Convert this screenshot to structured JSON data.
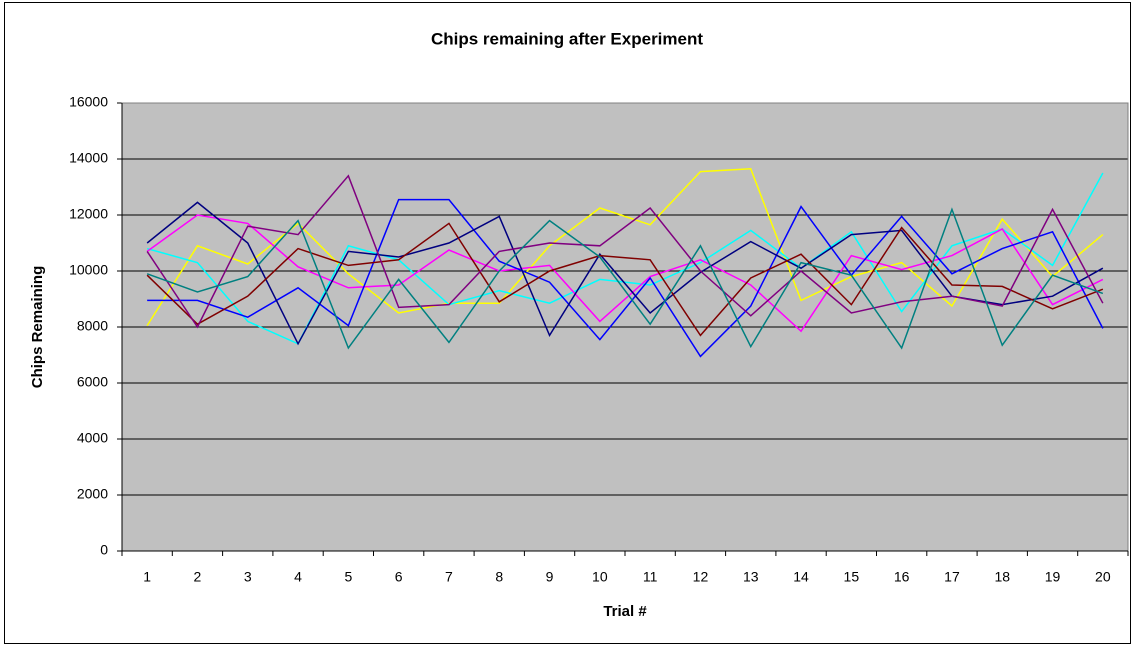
{
  "chart_data": {
    "type": "line",
    "title": "Chips remaining after Experiment",
    "x_label": "Trial #",
    "y_label": "Chips Remaining",
    "categories": [
      1,
      2,
      3,
      4,
      5,
      6,
      7,
      8,
      9,
      10,
      11,
      12,
      13,
      14,
      15,
      16,
      17,
      18,
      19,
      20
    ],
    "ylim": [
      0,
      16000
    ],
    "yticks": [
      0,
      2000,
      4000,
      6000,
      8000,
      10000,
      12000,
      14000,
      16000
    ],
    "grid": true,
    "series": [
      {
        "color": "#ffff00",
        "values": [
          8050,
          10900,
          10250,
          11700,
          9900,
          8500,
          8850,
          8850,
          10900,
          12250,
          11650,
          13550,
          13650,
          8950,
          9800,
          10300,
          8750,
          11850,
          9800,
          11300
        ]
      },
      {
        "color": "#00ffff",
        "values": [
          10800,
          10300,
          8200,
          7400,
          10900,
          10400,
          8800,
          9300,
          8850,
          9700,
          9500,
          10300,
          11450,
          10100,
          11400,
          8550,
          10900,
          11500,
          10200,
          13500
        ]
      },
      {
        "color": "#ff00ff",
        "values": [
          10700,
          12000,
          11700,
          10150,
          9400,
          9500,
          10750,
          10000,
          10200,
          8200,
          9800,
          10400,
          9500,
          7850,
          10550,
          10050,
          10550,
          11500,
          8800,
          9700
        ]
      },
      {
        "color": "#0000ff",
        "values": [
          8950,
          8950,
          8350,
          9400,
          8050,
          12550,
          12550,
          10350,
          9600,
          7550,
          9750,
          6950,
          8750,
          12300,
          9850,
          11950,
          9900,
          10800,
          11400,
          7950
        ]
      },
      {
        "color": "#000080",
        "values": [
          11000,
          12450,
          11000,
          7400,
          10700,
          10500,
          11000,
          11950,
          7700,
          10600,
          8500,
          9950,
          11050,
          10100,
          11300,
          11450,
          9100,
          8800,
          9100,
          10100
        ]
      },
      {
        "color": "#800000",
        "values": [
          9850,
          8100,
          9100,
          10800,
          10200,
          10400,
          11700,
          8900,
          10000,
          10550,
          10400,
          7700,
          9750,
          10600,
          8800,
          11550,
          9500,
          9450,
          8650,
          9350
        ]
      },
      {
        "color": "#800080",
        "values": [
          10700,
          8000,
          11600,
          11300,
          13400,
          8700,
          8800,
          10700,
          11000,
          10900,
          12250,
          10000,
          8400,
          10000,
          8500,
          8900,
          9100,
          8750,
          12200,
          8850
        ]
      },
      {
        "color": "#008080",
        "values": [
          9900,
          9250,
          9800,
          11800,
          7250,
          9700,
          7450,
          10000,
          11800,
          10500,
          8100,
          10900,
          7300,
          10300,
          9850,
          7250,
          12200,
          7350,
          9850,
          9200
        ]
      }
    ]
  }
}
